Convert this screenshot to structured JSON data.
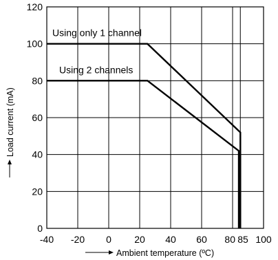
{
  "chart_data": {
    "type": "line",
    "xlabel": "Ambient temperature (ºC)",
    "ylabel": "Load current (mA)",
    "xlim": [
      -40,
      100
    ],
    "ylim": [
      0,
      120
    ],
    "grid": true,
    "x_ticks": [
      -40,
      -20,
      0,
      20,
      40,
      60,
      80,
      85,
      100
    ],
    "x_tick_labels": [
      "-40",
      "-20",
      "0",
      "20",
      "40",
      "60",
      "80",
      "85",
      "100"
    ],
    "y_ticks": [
      0,
      20,
      40,
      60,
      80,
      100,
      120
    ],
    "y_tick_labels": [
      "0",
      "20",
      "40",
      "60",
      "80",
      "100",
      "120"
    ],
    "series": [
      {
        "name": "Using only 1 channel",
        "x": [
          -40,
          25,
          85,
          85
        ],
        "y": [
          100,
          100,
          52,
          0
        ]
      },
      {
        "name": "Using 2 channels",
        "x": [
          -40,
          25,
          84,
          84
        ],
        "y": [
          80,
          80,
          42,
          0
        ]
      }
    ]
  }
}
